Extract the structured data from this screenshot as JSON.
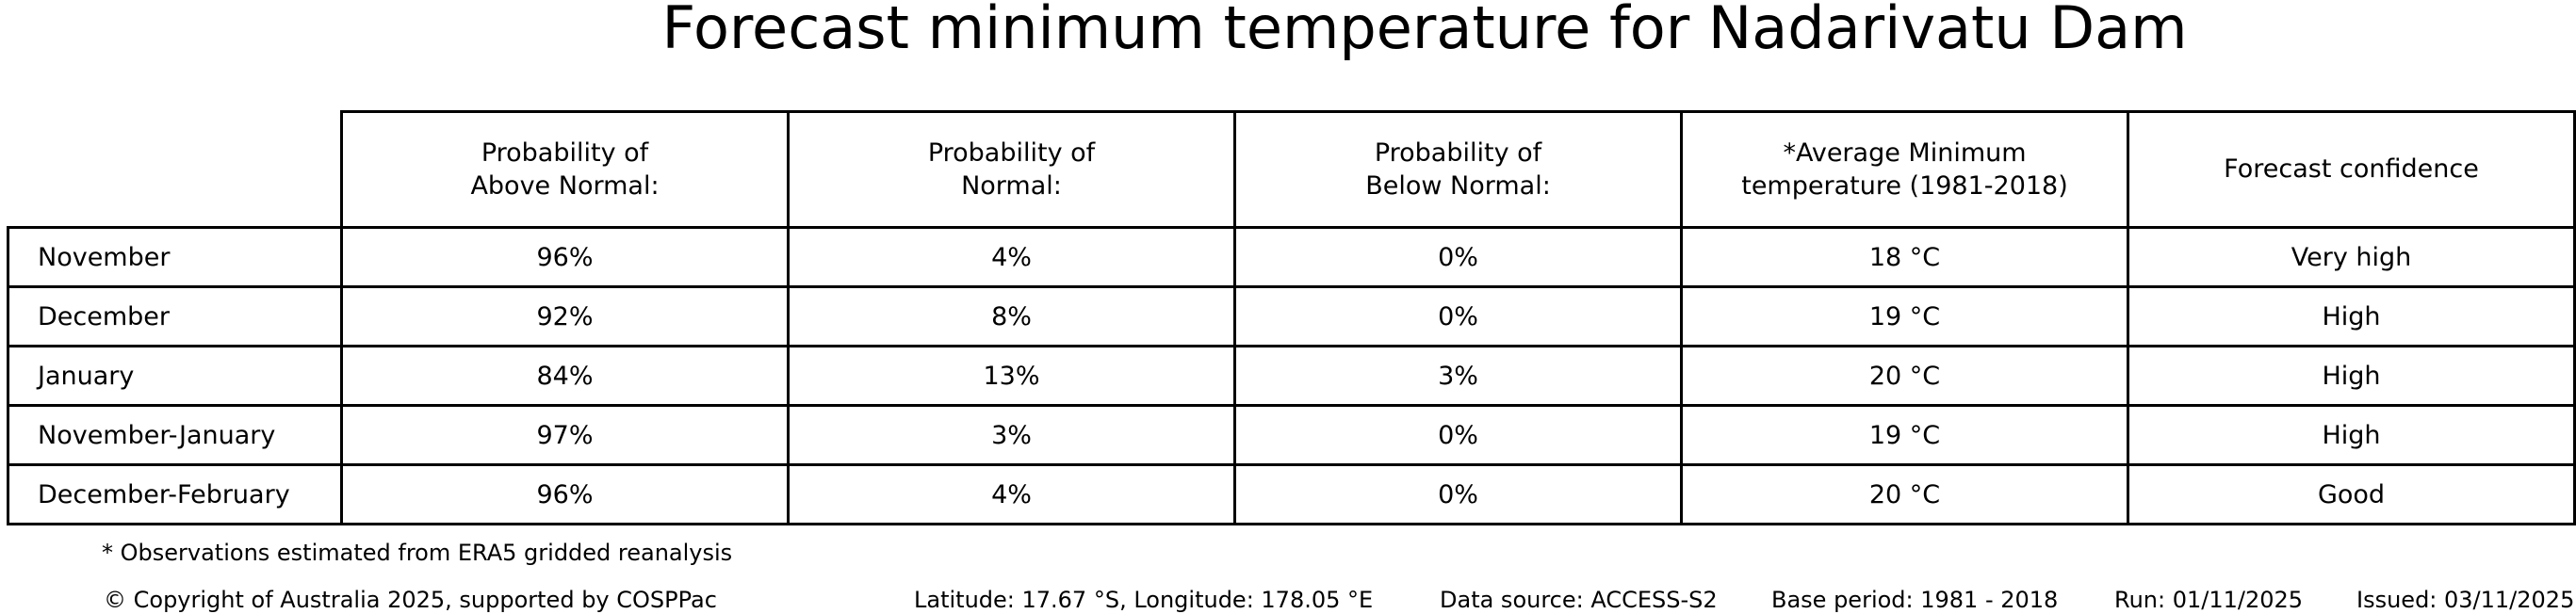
{
  "colors": {
    "background": "#ffffff",
    "text": "#000000",
    "table_border": "#000000"
  },
  "chart_data": {
    "type": "table",
    "title": "Forecast minimum temperature for Nadarivatu Dam",
    "columns": [
      "Probability of\nAbove Normal:",
      "Probability of\nNormal:",
      "Probability of\nBelow Normal:",
      "*Average Minimum\ntemperature (1981-2018)",
      "Forecast confidence"
    ],
    "row_labels": [
      "November",
      "December",
      "January",
      "November-January",
      "December-February"
    ],
    "rows": [
      [
        "96%",
        "4%",
        "0%",
        "18 °C",
        "Very high"
      ],
      [
        "92%",
        "8%",
        "0%",
        "19 °C",
        "High"
      ],
      [
        "84%",
        "13%",
        "3%",
        "20 °C",
        "High"
      ],
      [
        "97%",
        "3%",
        "0%",
        "19 °C",
        "High"
      ],
      [
        "96%",
        "4%",
        "0%",
        "20 °C",
        "Good"
      ]
    ],
    "layout": {
      "grid": "full-borders",
      "corner_cell_empty": true
    }
  },
  "footnote": "* Observations estimated from ERA5 gridded reanalysis",
  "footer": {
    "copyright": "© Copyright of Australia 2025, supported by COSPPac",
    "latitude_longitude": "Latitude: 17.67 °S, Longitude: 178.05 °E",
    "data_source": "Data source: ACCESS-S2",
    "base_period": "Base period: 1981 - 2018",
    "run": "Run: 01/11/2025",
    "issued": "Issued: 03/11/2025"
  }
}
